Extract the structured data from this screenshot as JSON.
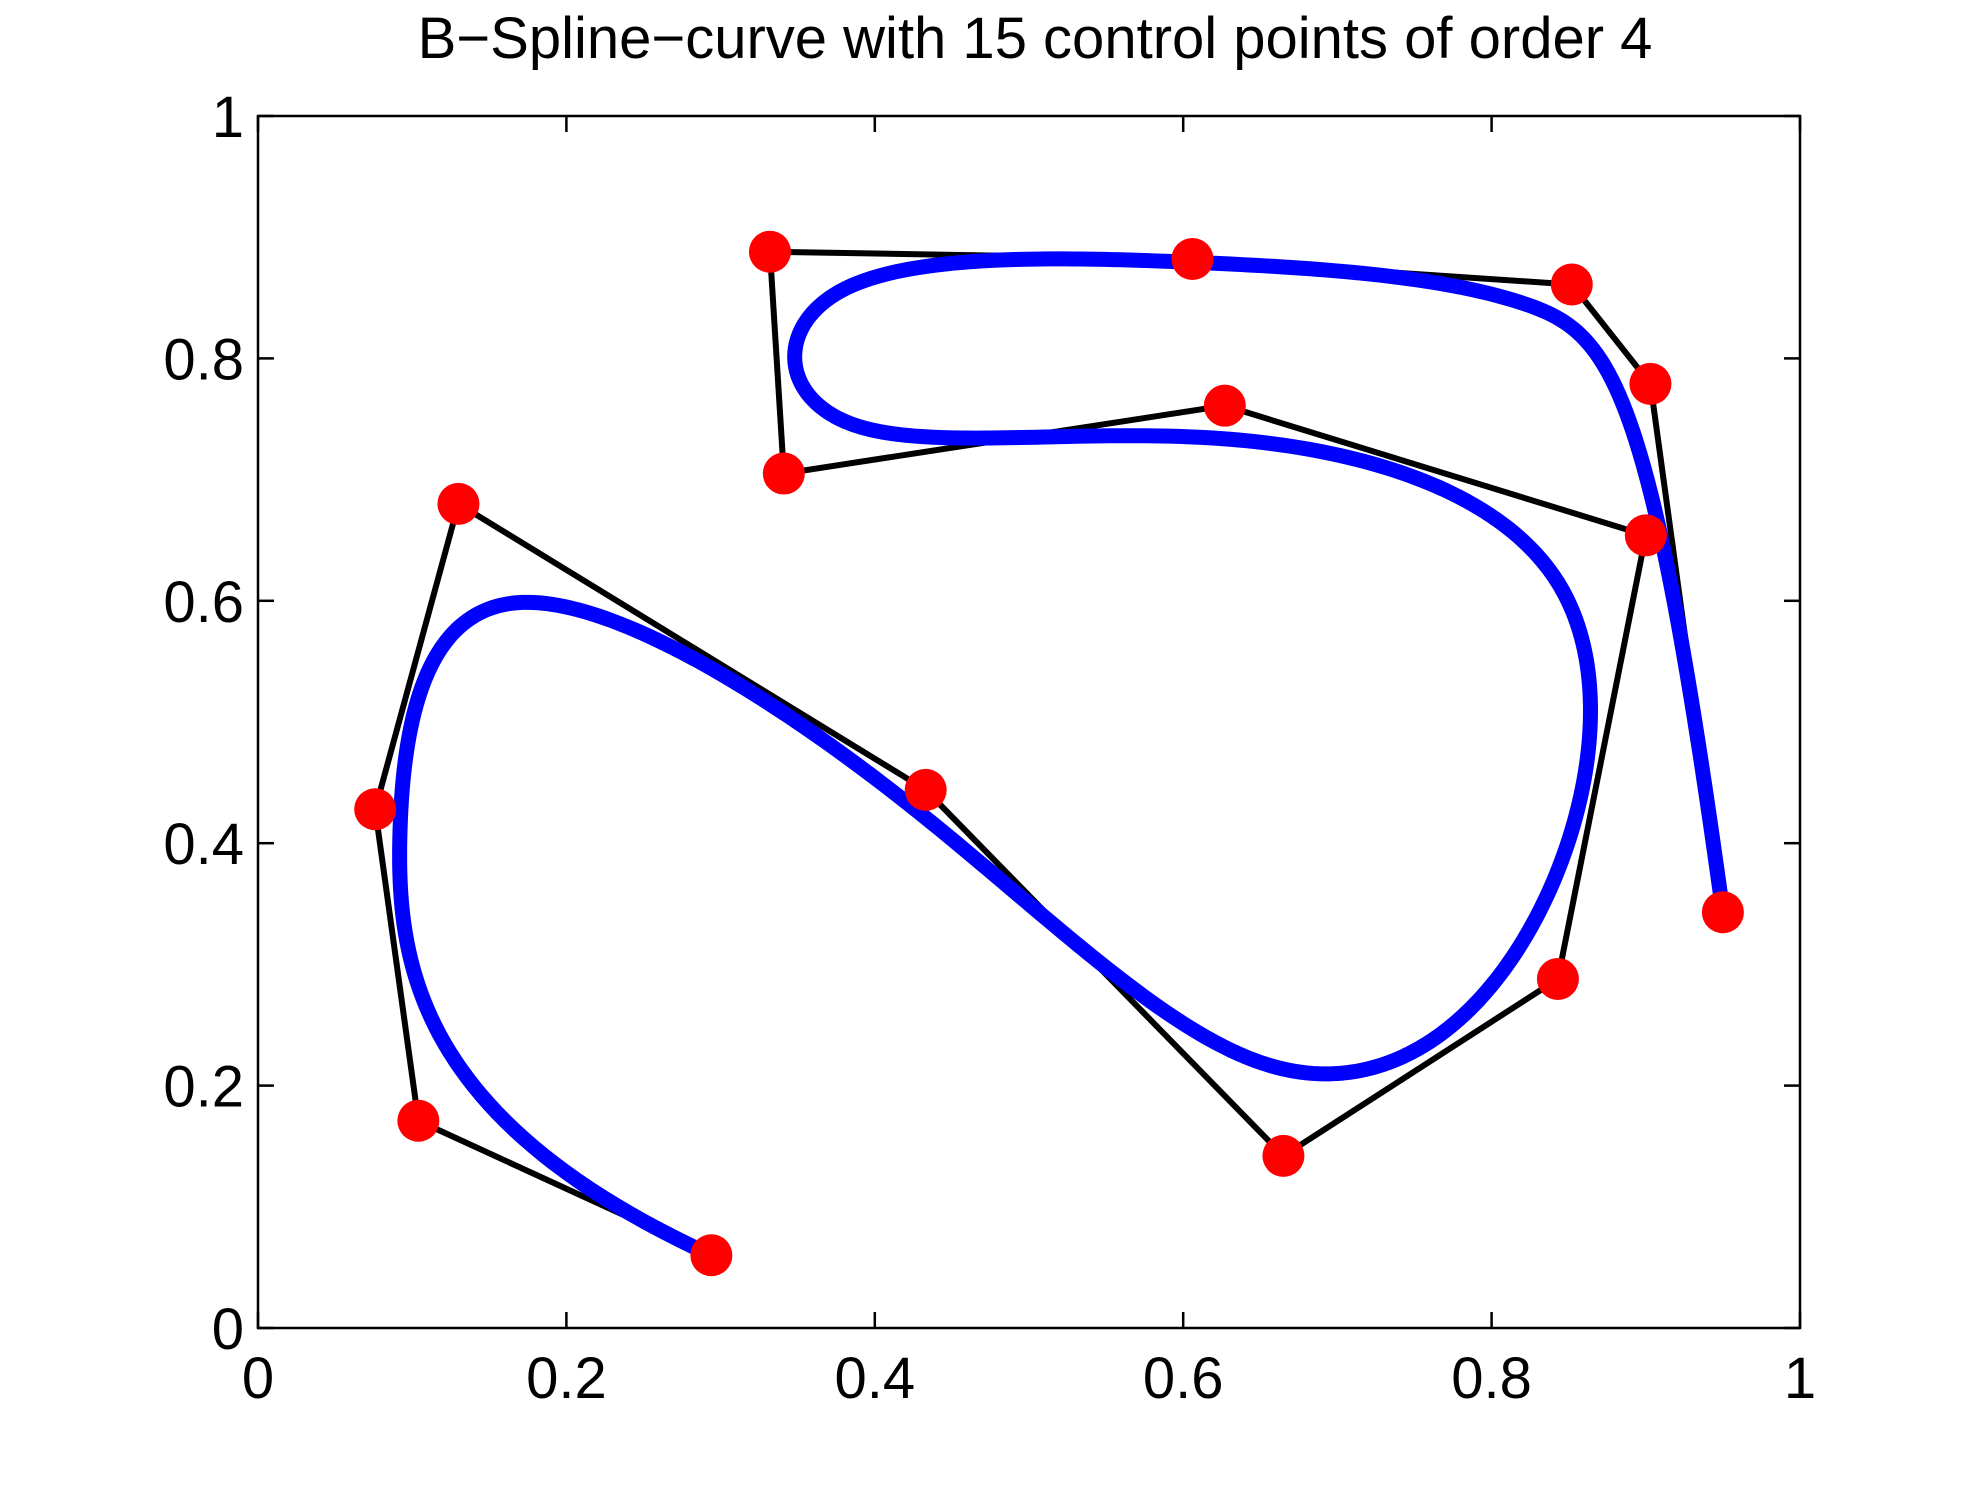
{
  "chart_data": {
    "type": "line",
    "title": "B−Spline−curve with 15 control points of order 4",
    "xlabel": "",
    "ylabel": "",
    "xlim": [
      0,
      1
    ],
    "ylim": [
      0,
      1
    ],
    "x_ticks": [
      0,
      0.2,
      0.4,
      0.6,
      0.8,
      1
    ],
    "y_ticks": [
      0,
      0.2,
      0.4,
      0.6,
      0.8,
      1
    ],
    "x_tick_labels": [
      "0",
      "0.2",
      "0.4",
      "0.6",
      "0.8",
      "1"
    ],
    "y_tick_labels": [
      "0",
      "0.2",
      "0.4",
      "0.6",
      "0.8",
      "1"
    ],
    "grid": false,
    "order": 4,
    "control_points": {
      "x": [
        0.294,
        0.104,
        0.076,
        0.13,
        0.433,
        0.665,
        0.843,
        0.9,
        0.627,
        0.341,
        0.332,
        0.606,
        0.852,
        0.903,
        0.95
      ],
      "y": [
        0.06,
        0.171,
        0.428,
        0.68,
        0.444,
        0.142,
        0.288,
        0.654,
        0.761,
        0.705,
        0.888,
        0.882,
        0.861,
        0.779,
        0.343
      ]
    },
    "colors": {
      "curve": "#0000ff",
      "polygon": "#000000",
      "points": "#ff0000",
      "axes": "#000000"
    }
  }
}
